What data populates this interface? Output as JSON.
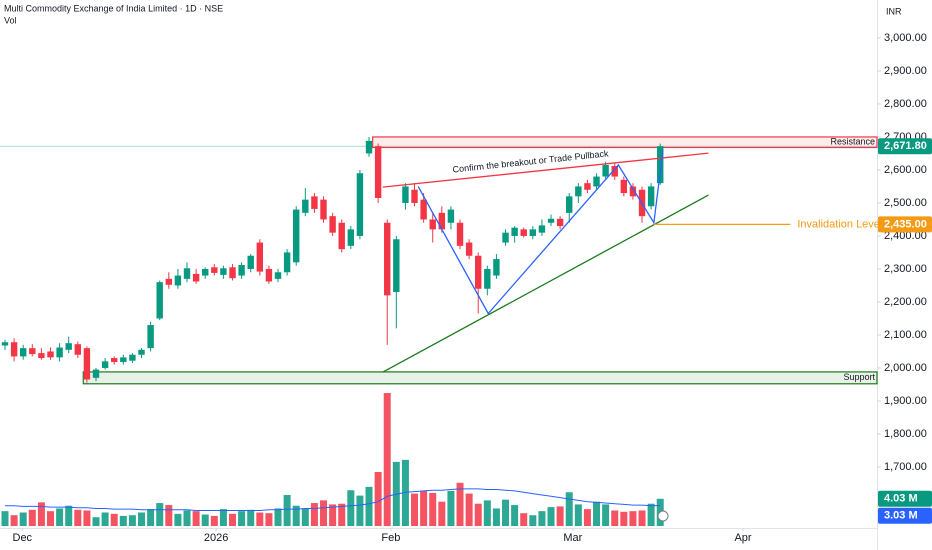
{
  "chart_data": {
    "type": "candlestick",
    "title": "Multi Commodity Exchange of India Limited · 1D · NSE",
    "volume_title": "Vol",
    "currency": "INR",
    "up_color": "#089981",
    "down_color": "#f23645",
    "xlim": [
      -0.55,
      95.82
    ],
    "xticks": [
      {
        "value": 1.9,
        "label": "Dec"
      },
      {
        "value": 23.2,
        "label": "2026"
      },
      {
        "value": 42.4,
        "label": "Feb"
      },
      {
        "value": 62.4,
        "label": "Mar"
      },
      {
        "value": 81.1,
        "label": "Apr"
      }
    ],
    "ylim": [
      1515,
      3115
    ],
    "yticks": [
      {
        "value": 1700,
        "label": "1,700.00"
      },
      {
        "value": 1800,
        "label": "1,800.00"
      },
      {
        "value": 1900,
        "label": "1,900.00"
      },
      {
        "value": 2000,
        "label": "2,000.00"
      },
      {
        "value": 2100,
        "label": "2,100.00"
      },
      {
        "value": 2200,
        "label": "2,200.00"
      },
      {
        "value": 2300,
        "label": "2,300.00"
      },
      {
        "value": 2400,
        "label": "2,400.00"
      },
      {
        "value": 2500,
        "label": "2,500.00"
      },
      {
        "value": 2600,
        "label": "2,600.00"
      },
      {
        "value": 2700,
        "label": "2,700.00"
      },
      {
        "value": 2800,
        "label": "2,800.00"
      },
      {
        "value": 2900,
        "label": "2,900.00"
      },
      {
        "value": 3000,
        "label": "3,000.00"
      }
    ],
    "grid": false,
    "x": [
      0,
      1,
      2,
      3,
      4,
      5,
      6,
      7,
      8,
      9,
      10,
      11,
      12,
      13,
      14,
      15,
      16,
      17,
      18,
      19,
      20,
      21,
      22,
      23,
      24,
      25,
      26,
      27,
      28,
      29,
      30,
      31,
      32,
      33,
      34,
      35,
      36,
      37,
      38,
      39,
      40,
      41,
      42,
      43,
      44,
      45,
      46,
      47,
      48,
      49,
      50,
      51,
      52,
      53,
      54,
      55,
      56,
      57,
      58,
      59,
      60,
      61,
      62,
      63,
      64,
      65,
      66,
      67,
      68,
      69,
      70,
      71,
      72
    ],
    "open": [
      2068,
      2078,
      2035,
      2060,
      2045,
      2050,
      2032,
      2055,
      2072,
      2060,
      1970,
      2000,
      2030,
      2018,
      2022,
      2040,
      2060,
      2150,
      2270,
      2250,
      2270,
      2285,
      2280,
      2305,
      2282,
      2305,
      2280,
      2300,
      2380,
      2300,
      2270,
      2290,
      2320,
      2470,
      2520,
      2510,
      2460,
      2440,
      2370,
      2400,
      2650,
      2672,
      2440,
      2230,
      2500,
      2540,
      2510,
      2450,
      2470,
      2440,
      2440,
      2380,
      2340,
      2240,
      2280,
      2380,
      2400,
      2420,
      2400,
      2410,
      2440,
      2452,
      2470,
      2520,
      2560,
      2550,
      2580,
      2612,
      2570,
      2550,
      2540,
      2490,
      2560
    ],
    "high": [
      2085,
      2090,
      2070,
      2072,
      2060,
      2062,
      2075,
      2095,
      2080,
      2065,
      2000,
      2030,
      2035,
      2040,
      2045,
      2060,
      2140,
      2265,
      2290,
      2300,
      2320,
      2300,
      2305,
      2315,
      2310,
      2315,
      2320,
      2345,
      2390,
      2310,
      2300,
      2360,
      2490,
      2545,
      2530,
      2520,
      2470,
      2450,
      2430,
      2600,
      2700,
      2680,
      2450,
      2400,
      2560,
      2560,
      2530,
      2470,
      2490,
      2490,
      2450,
      2390,
      2350,
      2310,
      2345,
      2420,
      2430,
      2425,
      2430,
      2450,
      2465,
      2460,
      2530,
      2560,
      2570,
      2590,
      2625,
      2620,
      2580,
      2560,
      2550,
      2560,
      2680
    ],
    "low": [
      2055,
      2020,
      2025,
      2035,
      2025,
      2025,
      2020,
      2045,
      2030,
      1955,
      1960,
      1995,
      2010,
      2010,
      2015,
      2030,
      2050,
      2145,
      2240,
      2240,
      2260,
      2255,
      2270,
      2280,
      2270,
      2265,
      2270,
      2290,
      2280,
      2255,
      2260,
      2280,
      2310,
      2460,
      2470,
      2440,
      2400,
      2350,
      2360,
      2390,
      2640,
      2500,
      2070,
      2120,
      2480,
      2490,
      2440,
      2380,
      2410,
      2420,
      2360,
      2330,
      2165,
      2220,
      2270,
      2370,
      2380,
      2395,
      2390,
      2400,
      2430,
      2420,
      2440,
      2500,
      2530,
      2540,
      2570,
      2570,
      2520,
      2510,
      2440,
      2480,
      2555
    ],
    "close": [
      2078,
      2035,
      2060,
      2042,
      2030,
      2032,
      2062,
      2075,
      2040,
      1965,
      1995,
      2020,
      2018,
      2032,
      2040,
      2055,
      2130,
      2260,
      2252,
      2280,
      2302,
      2262,
      2300,
      2288,
      2302,
      2272,
      2312,
      2340,
      2292,
      2262,
      2290,
      2350,
      2480,
      2510,
      2482,
      2450,
      2410,
      2360,
      2420,
      2590,
      2688,
      2515,
      2220,
      2390,
      2550,
      2500,
      2450,
      2420,
      2420,
      2480,
      2370,
      2340,
      2240,
      2300,
      2330,
      2410,
      2425,
      2400,
      2420,
      2432,
      2452,
      2430,
      2520,
      2550,
      2540,
      2580,
      2615,
      2580,
      2530,
      2520,
      2460,
      2550,
      2671.8
    ],
    "last_price": {
      "value": 2671.8,
      "label": "2,671.80",
      "color": "#089981"
    },
    "volume": {
      "ylim": [
        0,
        20
      ],
      "color_ma": "#2962ff",
      "values": [
        2.2,
        1.6,
        2.0,
        2.4,
        3.5,
        2.2,
        2.6,
        3.0,
        2.4,
        2.3,
        1.3,
        2.0,
        1.8,
        1.5,
        1.6,
        2.0,
        2.5,
        3.4,
        3.1,
        1.8,
        2.3,
        2.2,
        1.7,
        1.5,
        2.5,
        1.8,
        2.2,
        2.4,
        2.0,
        1.9,
        2.6,
        4.6,
        3.0,
        2.6,
        3.4,
        3.8,
        3.2,
        3.3,
        5.3,
        4.5,
        5.8,
        8.0,
        19.7,
        9.5,
        9.8,
        4.8,
        5.2,
        4.9,
        3.6,
        5.2,
        6.4,
        4.8,
        3.3,
        3.8,
        2.6,
        3.9,
        3.1,
        1.9,
        1.6,
        2.2,
        2.8,
        2.9,
        5.0,
        3.2,
        2.5,
        3.6,
        3.2,
        2.3,
        2.1,
        2.2,
        2.3,
        3.3,
        4.03
      ],
      "ma": [
        3.0,
        3.0,
        2.9,
        2.9,
        2.9,
        2.8,
        2.8,
        2.8,
        2.7,
        2.7,
        2.6,
        2.6,
        2.5,
        2.5,
        2.5,
        2.4,
        2.4,
        2.4,
        2.4,
        2.4,
        2.4,
        2.3,
        2.3,
        2.3,
        2.3,
        2.3,
        2.3,
        2.3,
        2.3,
        2.4,
        2.4,
        2.5,
        2.5,
        2.6,
        2.6,
        2.7,
        2.8,
        2.9,
        3.0,
        3.1,
        3.3,
        3.6,
        4.4,
        4.7,
        5.0,
        5.1,
        5.2,
        5.3,
        5.3,
        5.4,
        5.5,
        5.5,
        5.5,
        5.4,
        5.4,
        5.3,
        5.2,
        5.0,
        4.8,
        4.6,
        4.4,
        4.2,
        4.0,
        3.8,
        3.6,
        3.5,
        3.4,
        3.3,
        3.2,
        3.1,
        3.1,
        3.0,
        3.03
      ],
      "last_volume_label": "4.03 M",
      "last_ma_label": "3.03 M"
    },
    "zones": [
      {
        "label": "Resistance",
        "from": 2668,
        "to": 2700,
        "x_start": 40.4,
        "color": "#f23645"
      },
      {
        "label": "Support",
        "from": 1952,
        "to": 1988,
        "x_start": 8.6,
        "color": "#1b7a1b"
      }
    ],
    "trendlines": [
      {
        "x": [
          41.5,
          77.3
        ],
        "y": [
          1987,
          2524
        ],
        "color": "#1b7a1b"
      },
      {
        "x": [
          41.5,
          77.3
        ],
        "y": [
          2548,
          2651
        ],
        "color": "#f23645",
        "label": "Confirm the breakout or Trade Pullback"
      },
      {
        "x": [
          45.4,
          53.1,
          67.4,
          71.3,
          72.3
        ],
        "y": [
          2550,
          2165,
          2615,
          2440,
          2660
        ],
        "color": "#2962ff"
      }
    ],
    "invalidation": {
      "label": "Invalidation Level",
      "value": 2435,
      "value_label": "2,435.00",
      "x_start": 71.3,
      "x_end": 86.3,
      "color": "#f59a14"
    }
  }
}
